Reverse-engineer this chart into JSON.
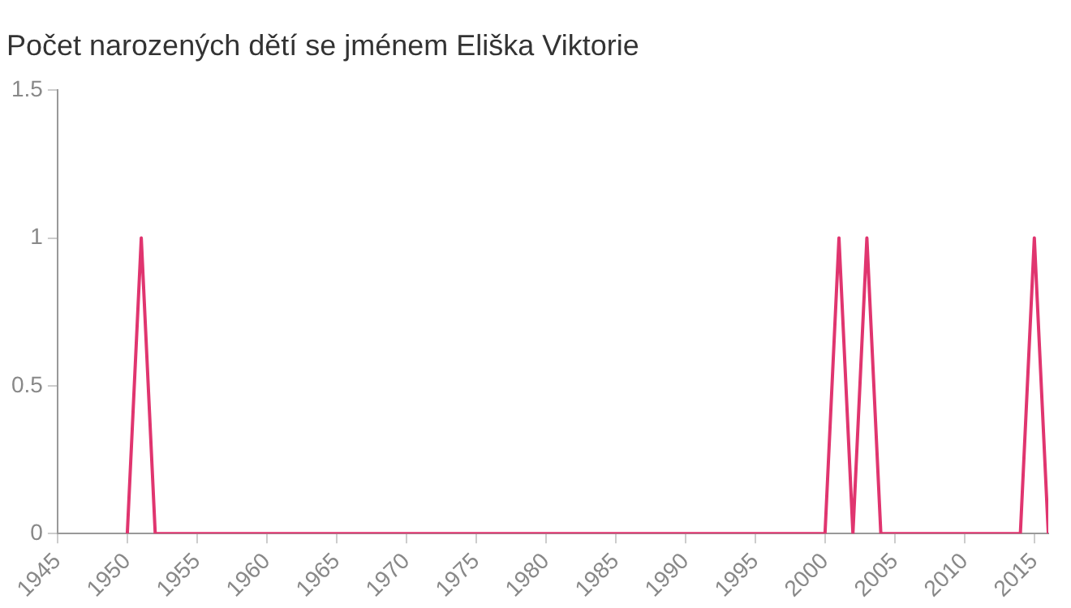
{
  "chart_data": {
    "type": "line",
    "title": "Počet narozených dětí se jménem Eliška Viktorie",
    "x": [
      1950,
      1951,
      1952,
      1953,
      1954,
      1955,
      1956,
      1957,
      1958,
      1959,
      1960,
      1961,
      1962,
      1963,
      1964,
      1965,
      1966,
      1967,
      1968,
      1969,
      1970,
      1971,
      1972,
      1973,
      1974,
      1975,
      1976,
      1977,
      1978,
      1979,
      1980,
      1981,
      1982,
      1983,
      1984,
      1985,
      1986,
      1987,
      1988,
      1989,
      1990,
      1991,
      1992,
      1993,
      1994,
      1995,
      1996,
      1997,
      1998,
      1999,
      2000,
      2001,
      2002,
      2003,
      2004,
      2005,
      2006,
      2007,
      2008,
      2009,
      2010,
      2011,
      2012,
      2013,
      2014,
      2015,
      2016
    ],
    "series": [
      {
        "color": "#e0356f",
        "values": [
          0,
          1,
          0,
          0,
          0,
          0,
          0,
          0,
          0,
          0,
          0,
          0,
          0,
          0,
          0,
          0,
          0,
          0,
          0,
          0,
          0,
          0,
          0,
          0,
          0,
          0,
          0,
          0,
          0,
          0,
          0,
          0,
          0,
          0,
          0,
          0,
          0,
          0,
          0,
          0,
          0,
          0,
          0,
          0,
          0,
          0,
          0,
          0,
          0,
          0,
          0,
          1,
          0,
          1,
          0,
          0,
          0,
          0,
          0,
          0,
          0,
          0,
          0,
          0,
          0,
          1,
          0
        ]
      }
    ],
    "xlim": [
      1945,
      2016
    ],
    "xticks": [
      1945,
      1950,
      1955,
      1960,
      1965,
      1970,
      1975,
      1980,
      1985,
      1990,
      1995,
      2000,
      2005,
      2010,
      2015
    ],
    "ylim": [
      0,
      1.5
    ],
    "yticks": [
      0,
      0.5,
      1,
      1.5
    ],
    "grid": false,
    "legend": false,
    "marker": "none",
    "line_style": "solid"
  }
}
